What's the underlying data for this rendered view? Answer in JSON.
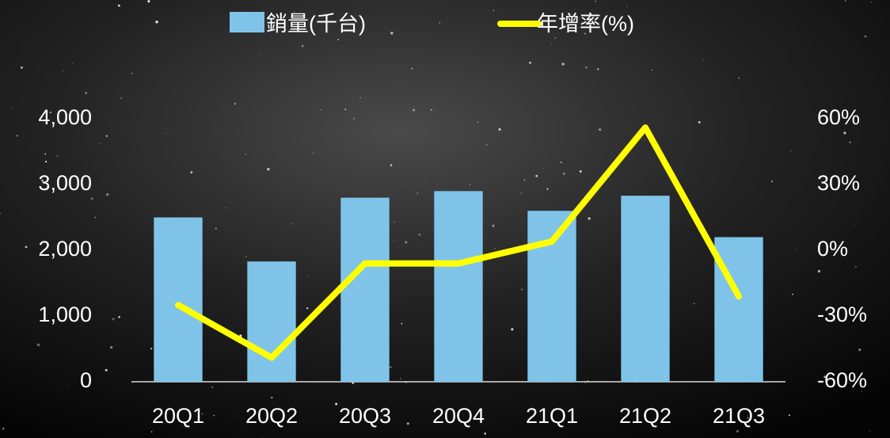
{
  "chart_data": {
    "type": "bar",
    "categories": [
      "20Q1",
      "20Q2",
      "20Q3",
      "20Q4",
      "21Q1",
      "21Q2",
      "21Q3"
    ],
    "series": [
      {
        "name": "銷量(千台)",
        "type": "bar",
        "color": "#7fc4e8",
        "values": [
          2500,
          1830,
          2800,
          2900,
          2600,
          2830,
          2200
        ]
      },
      {
        "name": "年增率(%)",
        "type": "line",
        "axis": "y2",
        "color": "#ffff00",
        "values": [
          -25,
          -49,
          -6,
          -6,
          4,
          56,
          -21
        ]
      }
    ],
    "ylim": [
      0,
      4000
    ],
    "yticks": [
      0,
      {
        "value": 1000,
        "label": "1,000"
      },
      {
        "value": 2000,
        "label": "2,000"
      },
      {
        "value": 3000,
        "label": "3,000"
      },
      {
        "value": 4000,
        "label": "4,000"
      }
    ],
    "y2lim": [
      -60,
      60
    ],
    "y2ticks": [
      {
        "value": -60,
        "label": "-60%"
      },
      {
        "value": -30,
        "label": "-30%"
      },
      {
        "value": 0,
        "label": "0%"
      },
      {
        "value": 30,
        "label": "30%"
      },
      {
        "value": 60,
        "label": "60%"
      }
    ],
    "legend": "top"
  }
}
